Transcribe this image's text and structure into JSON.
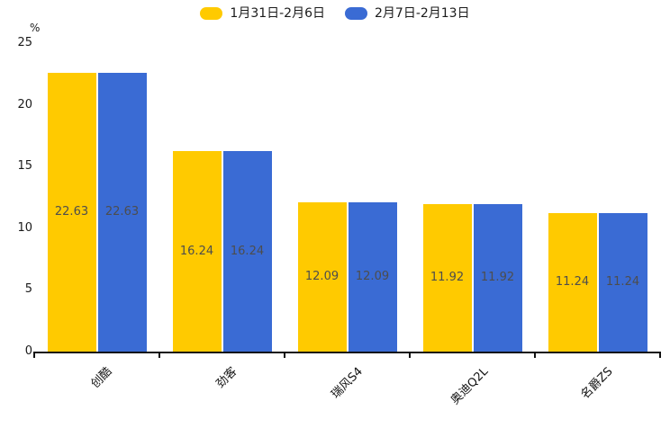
{
  "chart_data": {
    "type": "bar",
    "title": "",
    "xlabel": "",
    "ylabel": "%",
    "categories": [
      "创酷",
      "劲客",
      "瑞风S4",
      "奥迪Q2L",
      "名爵ZS"
    ],
    "series": [
      {
        "name": "1月31日-2月6日",
        "color": "#FFCA00",
        "values": [
          22.63,
          16.24,
          12.09,
          11.92,
          11.24
        ]
      },
      {
        "name": "2月7日-2月13日",
        "color": "#3A6BD4",
        "values": [
          22.63,
          16.24,
          12.09,
          11.92,
          11.24
        ]
      }
    ],
    "ylim": [
      0,
      25
    ],
    "y_ticks": [
      0,
      5,
      10,
      15,
      20,
      25
    ],
    "grid": false,
    "legend_position": "top-center",
    "value_labels": "inside-bar-centered",
    "xtick_rotation": 45,
    "axis_color": "#111111",
    "label_color": "#4d4d4d"
  }
}
